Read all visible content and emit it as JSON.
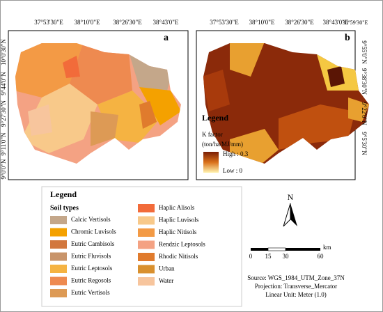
{
  "panel_a": {
    "label": "a",
    "top_labels": [
      "37°53'30\"E",
      "38°10'0\"E",
      "38°26'30\"E",
      "38°43'0\"E"
    ],
    "left_labels": [
      "10°0'30\"N",
      "9°44'0\"N",
      "9°27'30\"N",
      "9°11'0\"N",
      "9°0'0\"N"
    ]
  },
  "panel_b": {
    "label": "b",
    "top_labels": [
      "37°53'30\"E",
      "38°10'0\"E",
      "38°26'30\"E",
      "38°43'0\"E",
      "38°59'30\"E"
    ],
    "right_labels": [
      "9°55'0\"N",
      "9°38'30\"N",
      "9°22'0\"N",
      "9°5'30\"N"
    ],
    "legend": {
      "title": "Legend",
      "variable": "K factor",
      "unit": "(ton/ha/MJ/mm)",
      "high": "High : 0.3",
      "low": "Low : 0"
    }
  },
  "legend": {
    "title": "Legend",
    "subtitle": "Soil types",
    "items": [
      {
        "label": "Calcic Vertisols",
        "color": "#c4a78a"
      },
      {
        "label": "Chromic Luvisols",
        "color": "#f4a100"
      },
      {
        "label": "Eutric Cambisols",
        "color": "#d2773e"
      },
      {
        "label": "Eutric Fluvisols",
        "color": "#c8946a"
      },
      {
        "label": "Eutric Leptosols",
        "color": "#f5b342"
      },
      {
        "label": "Eutric Regosols",
        "color": "#ee8a50"
      },
      {
        "label": "Eutric Vertisols",
        "color": "#dd9a55"
      },
      {
        "label": "Haplic Alisols",
        "color": "#f26b3a"
      },
      {
        "label": "Haplic Luvisols",
        "color": "#f8c98a"
      },
      {
        "label": "Haplic Nitisols",
        "color": "#f39a45"
      },
      {
        "label": "Rendzic Leptosols",
        "color": "#f4a283"
      },
      {
        "label": "Rhodic Nitisols",
        "color": "#e07b2d"
      },
      {
        "label": "Urban",
        "color": "#d9902e"
      },
      {
        "label": "Water",
        "color": "#f7c59d"
      }
    ]
  },
  "north": "N",
  "scale_bar": {
    "labels": [
      "0",
      "15",
      "30",
      "60"
    ],
    "unit": "km"
  },
  "source": [
    "Source: WGS_1984_UTM_Zone_37N",
    "Projection: Transverse_Mercator",
    "Linear Unit: Meter (1.0)"
  ]
}
